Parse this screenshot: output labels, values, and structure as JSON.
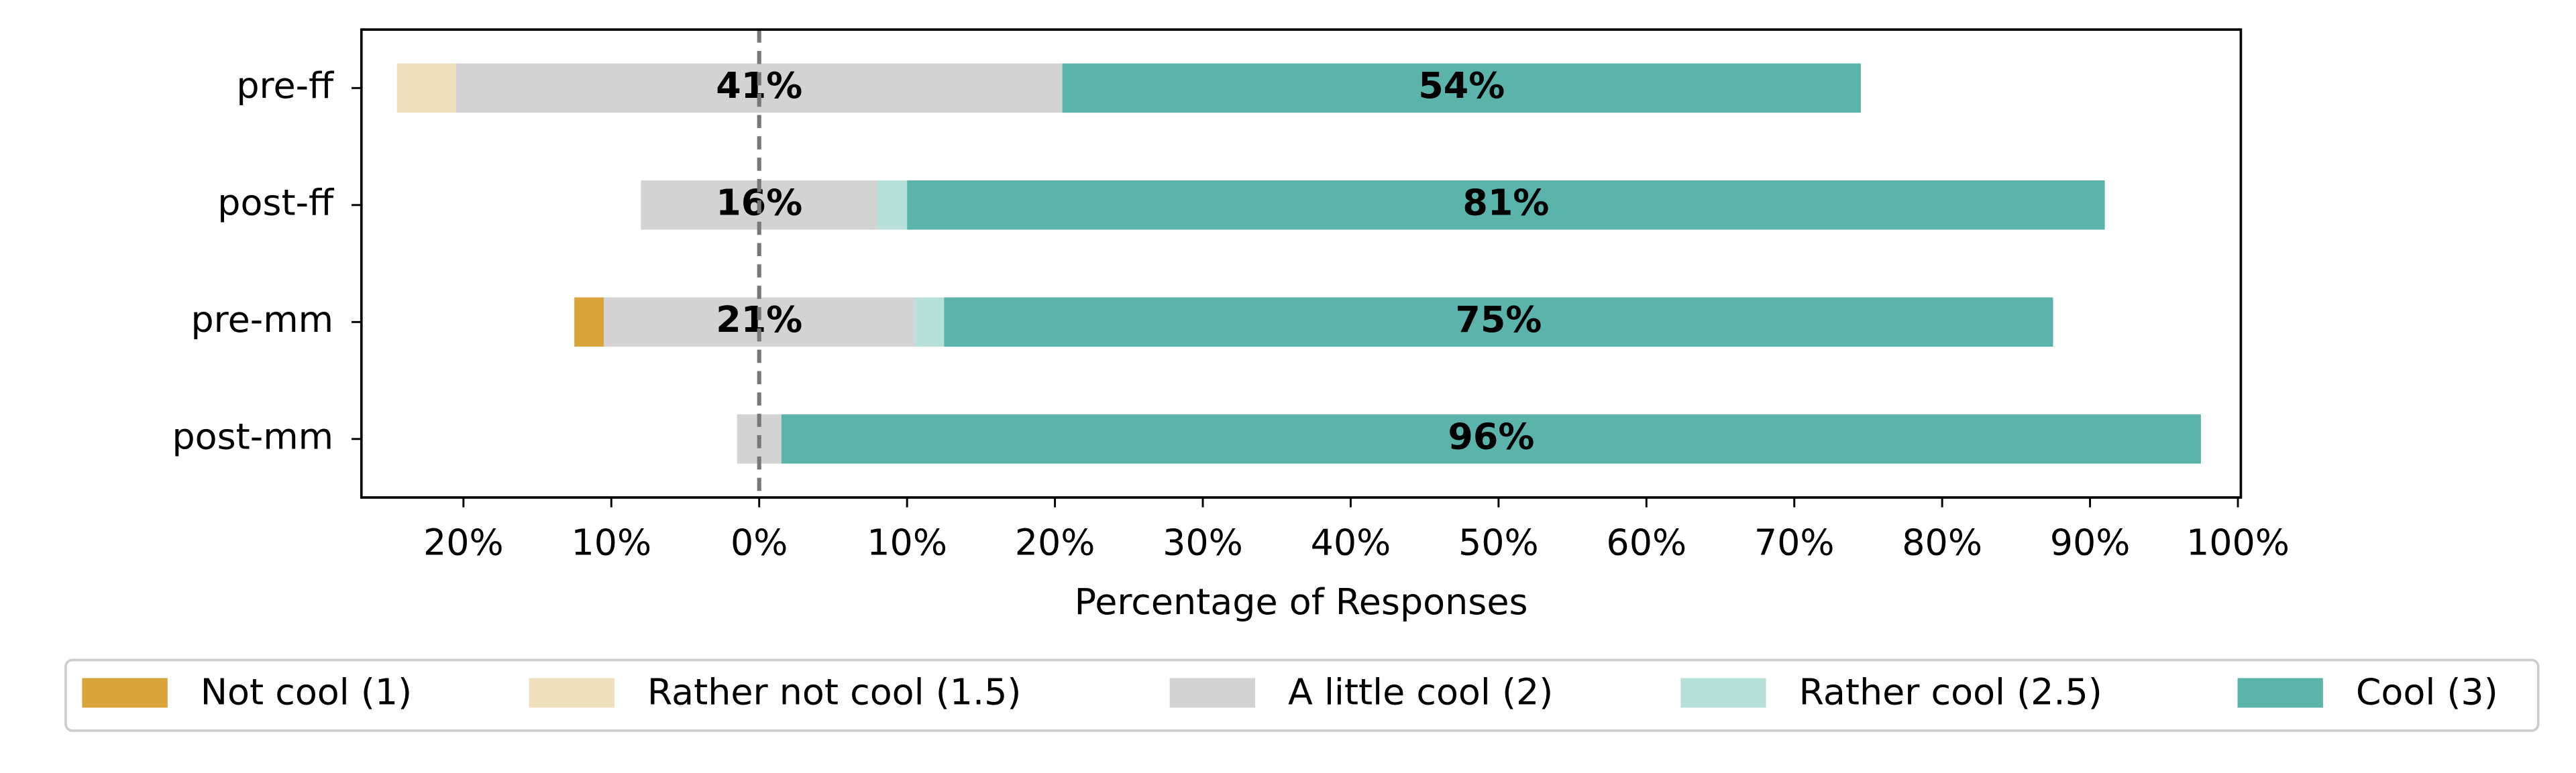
{
  "chart_data": {
    "type": "diverging_stacked_bar",
    "xlabel": "Percentage of Responses",
    "categories": [
      "pre-ff",
      "post-ff",
      "pre-mm",
      "post-mm"
    ],
    "series": [
      {
        "name": "Not cool (1)",
        "color": "#d9a43a",
        "values": [
          0,
          0,
          2,
          0
        ]
      },
      {
        "name": "Rather not cool (1.5)",
        "color": "#f0dfbd",
        "values": [
          4,
          0,
          0,
          0
        ]
      },
      {
        "name": "A little cool (2)",
        "color": "#d3d3d3",
        "values": [
          41,
          16,
          21,
          3
        ],
        "value_labels": [
          "41%",
          "16%",
          "21%",
          null
        ]
      },
      {
        "name": "Rather cool (2.5)",
        "color": "#b8e0da",
        "values": [
          0,
          2,
          2,
          0
        ]
      },
      {
        "name": "Cool (3)",
        "color": "#5ab4ac",
        "values": [
          54,
          81,
          75,
          96
        ],
        "value_labels": [
          "54%",
          "81%",
          "75%",
          "96%"
        ]
      }
    ],
    "neutral_series": 2,
    "xlim": [
      -26.9,
      100.2
    ],
    "xticks": [
      {
        "value": -20,
        "label": "20%"
      },
      {
        "value": -10,
        "label": "10%"
      },
      {
        "value": 0,
        "label": "0%"
      },
      {
        "value": 10,
        "label": "10%"
      },
      {
        "value": 20,
        "label": "20%"
      },
      {
        "value": 30,
        "label": "30%"
      },
      {
        "value": 40,
        "label": "40%"
      },
      {
        "value": 50,
        "label": "50%"
      },
      {
        "value": 60,
        "label": "60%"
      },
      {
        "value": 70,
        "label": "70%"
      },
      {
        "value": 80,
        "label": "80%"
      },
      {
        "value": 90,
        "label": "90%"
      },
      {
        "value": 100,
        "label": "100%"
      }
    ],
    "center_line": true,
    "legend": "bottom"
  }
}
